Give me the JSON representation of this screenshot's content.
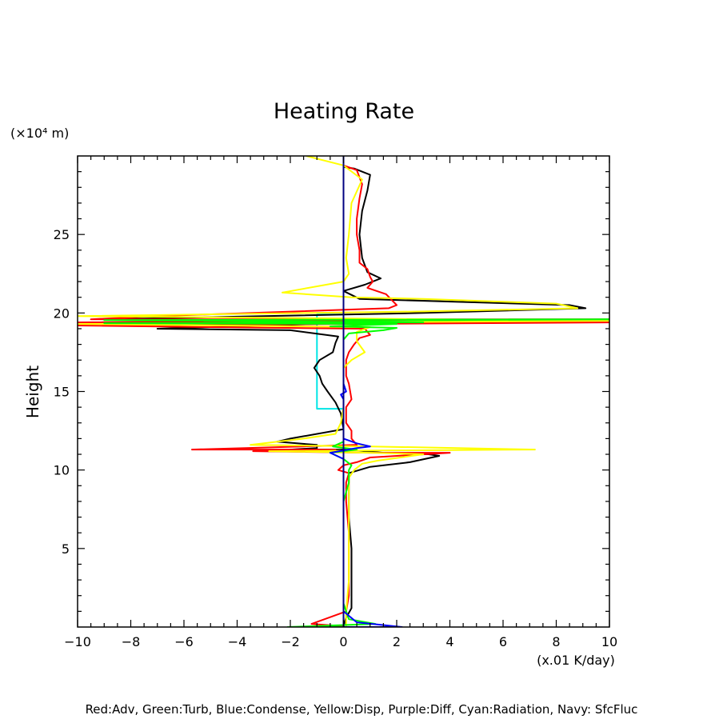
{
  "chart_data": {
    "type": "line",
    "title": "Heating Rate",
    "ylabel": "Height",
    "y_unit_label": "(×10⁴ m)",
    "x_unit_label": "(x.01 K/day)",
    "footer": "Red:Adv, Green:Turb, Blue:Condense, Yellow:Disp, Purple:Diff, Cyan:Radiation, Navy: SfcFluc",
    "xlim": [
      -10,
      10
    ],
    "ylim": [
      0,
      30
    ],
    "x_ticks": [
      -10,
      -8,
      -6,
      -4,
      -2,
      0,
      2,
      4,
      6,
      8,
      10
    ],
    "x_tick_labels": [
      "−10",
      "−8",
      "−6",
      "−4",
      "−2",
      "0",
      "2",
      "4",
      "6",
      "8",
      "10"
    ],
    "y_ticks": [
      5,
      10,
      15,
      20,
      25
    ],
    "y_tick_labels": [
      "5",
      "10",
      "15",
      "20",
      "25"
    ],
    "series": [
      {
        "name": "Cyan:Radiation",
        "color": "#00e5e5",
        "points": [
          [
            0,
            0
          ],
          [
            0,
            13.9
          ],
          [
            -1,
            13.9
          ],
          [
            -1,
            19.9
          ],
          [
            0,
            19.9
          ],
          [
            0,
            30
          ]
        ]
      },
      {
        "name": "Purple:Diff",
        "color": "#a000c8",
        "points": [
          [
            0,
            0
          ],
          [
            0,
            30
          ]
        ]
      },
      {
        "name": "Black:Total",
        "color": "#000000",
        "points": [
          [
            0,
            29.3
          ],
          [
            0.4,
            29.2
          ],
          [
            1.0,
            28.8
          ],
          [
            0.9,
            27.8
          ],
          [
            0.7,
            26.5
          ],
          [
            0.6,
            25
          ],
          [
            0.7,
            23.5
          ],
          [
            0.9,
            22.6
          ],
          [
            1.4,
            22.2
          ],
          [
            0.8,
            21.8
          ],
          [
            0,
            21.4
          ],
          [
            0.6,
            20.9
          ],
          [
            8.5,
            20.5
          ],
          [
            9.1,
            20.3
          ],
          [
            3,
            20
          ],
          [
            -3,
            19.8
          ],
          [
            -9,
            19.6
          ],
          [
            -3,
            19.4
          ],
          [
            1,
            19.4
          ],
          [
            -3,
            19.2
          ],
          [
            -7,
            19
          ],
          [
            -2,
            18.9
          ],
          [
            -0.2,
            18.5
          ],
          [
            -0.3,
            18.1
          ],
          [
            -0.4,
            17.5
          ],
          [
            -0.9,
            17
          ],
          [
            -1.1,
            16.5
          ],
          [
            -0.9,
            16
          ],
          [
            -0.8,
            15.5
          ],
          [
            -0.6,
            15
          ],
          [
            -0.3,
            14.3
          ],
          [
            -0.1,
            13.6
          ],
          [
            0,
            12.6
          ],
          [
            -2,
            12
          ],
          [
            -2.5,
            11.8
          ],
          [
            -1,
            11.6
          ],
          [
            -1,
            11.4
          ],
          [
            -2,
            11.3
          ],
          [
            0.1,
            11.3
          ],
          [
            1.5,
            11.1
          ],
          [
            3.2,
            11
          ],
          [
            3.6,
            10.9
          ],
          [
            2.5,
            10.5
          ],
          [
            1,
            10.2
          ],
          [
            0.2,
            9.8
          ],
          [
            0.2,
            9
          ],
          [
            0.2,
            7
          ],
          [
            0.3,
            5
          ],
          [
            0.3,
            3
          ],
          [
            0.3,
            1.2
          ],
          [
            0.1,
            0.6
          ],
          [
            0,
            0
          ]
        ]
      },
      {
        "name": "Red:Adv",
        "color": "#ff0000",
        "points": [
          [
            0,
            29.4
          ],
          [
            0.5,
            29.1
          ],
          [
            0.7,
            28.2
          ],
          [
            0.6,
            27.3
          ],
          [
            0.5,
            26
          ],
          [
            0.5,
            25
          ],
          [
            0.6,
            24
          ],
          [
            0.6,
            23.2
          ],
          [
            0.9,
            22.8
          ],
          [
            1,
            22.3
          ],
          [
            1.1,
            22
          ],
          [
            0.9,
            21.6
          ],
          [
            1.6,
            21.2
          ],
          [
            2,
            20.5
          ],
          [
            1.7,
            20.3
          ],
          [
            -7,
            19.8
          ],
          [
            -9.5,
            19.6
          ],
          [
            10,
            19.6
          ],
          [
            -10,
            19.4
          ],
          [
            10,
            19.4
          ],
          [
            -10,
            19.2
          ],
          [
            -5,
            19.1
          ],
          [
            0.8,
            19
          ],
          [
            1,
            18.6
          ],
          [
            0.6,
            18.4
          ],
          [
            0.4,
            18
          ],
          [
            0.2,
            17.5
          ],
          [
            0.1,
            17
          ],
          [
            0.1,
            16
          ],
          [
            0.2,
            15.5
          ],
          [
            0.3,
            14.5
          ],
          [
            0.1,
            14
          ],
          [
            0.1,
            13
          ],
          [
            0.3,
            12.5
          ],
          [
            0.3,
            12
          ],
          [
            0.5,
            11.6
          ],
          [
            -5.7,
            11.3
          ],
          [
            -0.3,
            11.3
          ],
          [
            -3.4,
            11.2
          ],
          [
            1,
            11.1
          ],
          [
            4,
            11.1
          ],
          [
            1,
            10.8
          ],
          [
            0.5,
            10.5
          ],
          [
            0,
            10.3
          ],
          [
            -0.2,
            10
          ],
          [
            0.2,
            9.8
          ],
          [
            0.1,
            9.2
          ],
          [
            0.1,
            8
          ],
          [
            0.2,
            6
          ],
          [
            0.2,
            4
          ],
          [
            0.2,
            2
          ],
          [
            0.1,
            1
          ],
          [
            -1.2,
            0.2
          ],
          [
            0,
            0.05
          ]
        ]
      },
      {
        "name": "Yellow:Disp",
        "color": "#ffff00",
        "points": [
          [
            -1.4,
            30
          ],
          [
            0,
            29.4
          ],
          [
            0.7,
            28.5
          ],
          [
            0.3,
            27
          ],
          [
            0.2,
            25
          ],
          [
            0.1,
            23.5
          ],
          [
            0.2,
            22.5
          ],
          [
            0,
            22
          ],
          [
            -2.3,
            21.3
          ],
          [
            0.3,
            21
          ],
          [
            3,
            20.9
          ],
          [
            8,
            20.6
          ],
          [
            8.8,
            20.3
          ],
          [
            3,
            20.1
          ],
          [
            -10,
            19.8
          ],
          [
            10,
            19.5
          ],
          [
            -10,
            19.3
          ],
          [
            1,
            19.1
          ],
          [
            0.5,
            18.8
          ],
          [
            0.5,
            18.2
          ],
          [
            0.8,
            17.5
          ],
          [
            0.3,
            17
          ],
          [
            0,
            16.5
          ],
          [
            0,
            15
          ],
          [
            0,
            14
          ],
          [
            -0.1,
            13
          ],
          [
            -0.3,
            12.3
          ],
          [
            -1.5,
            12
          ],
          [
            -3.5,
            11.6
          ],
          [
            1,
            11.5
          ],
          [
            7.2,
            11.3
          ],
          [
            -2.8,
            11.2
          ],
          [
            1,
            11.1
          ],
          [
            3,
            11
          ],
          [
            1.3,
            10.6
          ],
          [
            0.7,
            10.4
          ],
          [
            0.4,
            10
          ],
          [
            0.2,
            9.5
          ],
          [
            0.2,
            8
          ],
          [
            0.2,
            5
          ],
          [
            0.2,
            3
          ],
          [
            0.1,
            1
          ],
          [
            0.1,
            0
          ]
        ]
      },
      {
        "name": "Green:Turb",
        "color": "#00ff00",
        "points": [
          [
            0,
            20
          ],
          [
            0,
            19.5
          ],
          [
            10,
            19.6
          ],
          [
            -9,
            19.55
          ],
          [
            3,
            19.4
          ],
          [
            -9,
            19.35
          ],
          [
            2,
            19.3
          ],
          [
            -0.5,
            19.15
          ],
          [
            2,
            19.05
          ],
          [
            1.5,
            18.9
          ],
          [
            0.2,
            18.7
          ],
          [
            0,
            18.3
          ],
          [
            0,
            11.8
          ],
          [
            -0.4,
            11.5
          ],
          [
            0.5,
            11.3
          ],
          [
            -0.5,
            11.1
          ],
          [
            0,
            10.7
          ],
          [
            0.3,
            10.3
          ],
          [
            0.2,
            10
          ],
          [
            0.2,
            9.2
          ],
          [
            0,
            8
          ],
          [
            0,
            1.5
          ],
          [
            0.2,
            0.5
          ],
          [
            1.2,
            0.2
          ],
          [
            -2.1,
            0
          ],
          [
            0,
            0
          ]
        ]
      },
      {
        "name": "Blue:Condense",
        "color": "#0000ff",
        "points": [
          [
            0,
            30
          ],
          [
            0,
            18
          ],
          [
            0,
            15.5
          ],
          [
            0.1,
            15
          ],
          [
            -0.1,
            14.8
          ],
          [
            0,
            14.5
          ],
          [
            0,
            12
          ],
          [
            0.5,
            11.7
          ],
          [
            1,
            11.5
          ],
          [
            0.5,
            11.4
          ],
          [
            -0.5,
            11.1
          ],
          [
            0,
            10.7
          ],
          [
            0,
            9.8
          ],
          [
            0,
            1
          ],
          [
            0.5,
            0.3
          ],
          [
            2.2,
            0
          ],
          [
            0,
            0
          ]
        ]
      },
      {
        "name": "Navy: SfcFluc",
        "color": "#000080",
        "points": [
          [
            0,
            0
          ],
          [
            0,
            30
          ]
        ]
      }
    ]
  }
}
